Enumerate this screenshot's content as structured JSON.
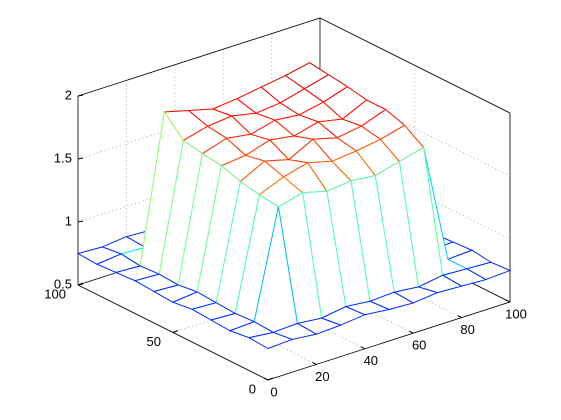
{
  "chart_data": {
    "type": "mesh",
    "x": [
      0,
      10,
      20,
      30,
      40,
      50,
      60,
      70,
      80,
      90,
      100
    ],
    "y": [
      0,
      10,
      20,
      30,
      40,
      50,
      60,
      70,
      80,
      90,
      100
    ],
    "z": [
      [
        0.75,
        0.76,
        0.74,
        0.75,
        0.77,
        0.75,
        0.74,
        0.76,
        0.75,
        0.74,
        0.75
      ],
      [
        0.76,
        0.74,
        0.75,
        0.73,
        0.76,
        0.74,
        0.75,
        0.73,
        0.76,
        0.75,
        0.74
      ],
      [
        0.74,
        0.75,
        1.6,
        1.65,
        1.6,
        1.62,
        1.6,
        1.65,
        1.7,
        0.75,
        0.76
      ],
      [
        0.75,
        0.74,
        1.62,
        1.7,
        1.75,
        1.7,
        1.72,
        1.75,
        1.8,
        0.74,
        0.75
      ],
      [
        0.76,
        0.75,
        1.65,
        1.75,
        1.7,
        1.8,
        1.75,
        1.78,
        1.85,
        0.76,
        0.74
      ],
      [
        0.74,
        0.76,
        1.7,
        1.72,
        1.78,
        1.75,
        1.8,
        1.76,
        1.85,
        0.75,
        0.75
      ],
      [
        0.75,
        0.74,
        1.72,
        1.78,
        1.75,
        1.8,
        1.78,
        1.82,
        1.88,
        0.74,
        0.76
      ],
      [
        0.76,
        0.75,
        1.75,
        1.8,
        1.82,
        1.78,
        1.8,
        1.85,
        1.9,
        0.75,
        0.74
      ],
      [
        0.75,
        0.74,
        1.9,
        1.85,
        1.8,
        1.82,
        1.85,
        1.88,
        1.92,
        0.76,
        0.75
      ],
      [
        0.74,
        0.76,
        0.75,
        0.74,
        0.76,
        0.75,
        0.74,
        0.76,
        0.75,
        0.74,
        0.76
      ],
      [
        0.75,
        0.74,
        0.76,
        0.75,
        0.74,
        0.76,
        0.75,
        0.74,
        0.76,
        0.75,
        0.74
      ]
    ],
    "xlim": [
      0,
      100
    ],
    "ylim": [
      0,
      100
    ],
    "zlim": [
      0.5,
      2
    ],
    "xticks": [
      0,
      20,
      40,
      60,
      80,
      100
    ],
    "yticks": [
      0,
      50,
      100
    ],
    "zticks": [
      0.5,
      1,
      1.5,
      2
    ],
    "grid": true,
    "colormap": "jet"
  }
}
